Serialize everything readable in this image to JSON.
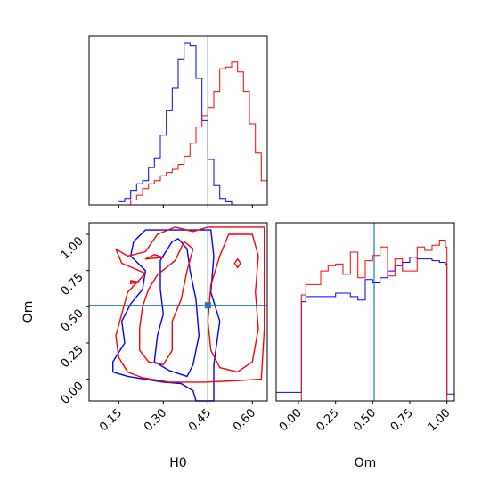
{
  "chart_data": [
    {
      "type": "histogram",
      "panel": "H0 marginal",
      "xlim": [
        0.05,
        0.65
      ],
      "truth": 0.45,
      "bin_edges": [
        0.15,
        0.17,
        0.19,
        0.21,
        0.23,
        0.25,
        0.27,
        0.29,
        0.31,
        0.33,
        0.35,
        0.37,
        0.39,
        0.41,
        0.43,
        0.45,
        0.47,
        0.49,
        0.51,
        0.53,
        0.55,
        0.57,
        0.59,
        0.61,
        0.63,
        0.65
      ],
      "series": [
        {
          "color": "#0000ff",
          "values": [
            0.02,
            0.04,
            0.09,
            0.13,
            0.15,
            0.23,
            0.29,
            0.43,
            0.58,
            0.72,
            0.9,
            1.0,
            0.98,
            0.78,
            0.52,
            0.28,
            0.12,
            0.04,
            0.02,
            0.0,
            0.0,
            0.0,
            0.0,
            0.0,
            0.0
          ]
        },
        {
          "color": "#ff0000",
          "values": [
            0.0,
            0.0,
            0.03,
            0.06,
            0.1,
            0.13,
            0.15,
            0.18,
            0.2,
            0.22,
            0.25,
            0.3,
            0.38,
            0.48,
            0.55,
            0.6,
            0.7,
            0.84,
            0.85,
            0.88,
            0.82,
            0.7,
            0.5,
            0.32,
            0.15
          ]
        }
      ]
    },
    {
      "type": "contour",
      "panel": "H0 vs Om joint",
      "xlabel": "H0",
      "ylabel": "Om",
      "xlim": [
        0.05,
        0.65
      ],
      "ylim": [
        -0.15,
        1.08
      ],
      "xticks": [
        "0.15",
        "0.30",
        "0.45",
        "0.60"
      ],
      "yticks": [
        "0.00",
        "0.25",
        "0.50",
        "0.75",
        "1.00"
      ],
      "truth": {
        "x": 0.45,
        "y": 0.51
      },
      "series": [
        {
          "color": "#0000ff",
          "level": "outer",
          "points": [
            [
              0.24,
              1.03
            ],
            [
              0.2,
              0.95
            ],
            [
              0.19,
              0.85
            ],
            [
              0.24,
              0.75
            ],
            [
              0.23,
              0.62
            ],
            [
              0.19,
              0.52
            ],
            [
              0.16,
              0.4
            ],
            [
              0.17,
              0.25
            ],
            [
              0.13,
              0.12
            ],
            [
              0.13,
              0.05
            ],
            [
              0.18,
              0.02
            ],
            [
              0.3,
              -0.02
            ],
            [
              0.36,
              -0.03
            ],
            [
              0.4,
              -0.08
            ],
            [
              0.41,
              -0.15
            ],
            [
              0.47,
              -0.15
            ],
            [
              0.47,
              0.1
            ],
            [
              0.49,
              0.4
            ],
            [
              0.46,
              0.6
            ],
            [
              0.47,
              0.85
            ],
            [
              0.46,
              1.03
            ]
          ]
        },
        {
          "color": "#0000ff",
          "level": "inner",
          "points": [
            [
              0.33,
              0.95
            ],
            [
              0.29,
              0.82
            ],
            [
              0.29,
              0.62
            ],
            [
              0.3,
              0.45
            ],
            [
              0.28,
              0.3
            ],
            [
              0.27,
              0.12
            ],
            [
              0.32,
              0.06
            ],
            [
              0.38,
              0.02
            ],
            [
              0.4,
              0.1
            ],
            [
              0.42,
              0.3
            ],
            [
              0.41,
              0.55
            ],
            [
              0.39,
              0.75
            ],
            [
              0.38,
              0.9
            ],
            [
              0.35,
              0.97
            ]
          ]
        },
        {
          "color": "#ff0000",
          "level": "outer",
          "points": [
            [
              0.34,
              1.05
            ],
            [
              0.28,
              1.0
            ],
            [
              0.24,
              0.88
            ],
            [
              0.18,
              0.85
            ],
            [
              0.14,
              0.9
            ],
            [
              0.16,
              0.8
            ],
            [
              0.24,
              0.73
            ],
            [
              0.18,
              0.6
            ],
            [
              0.16,
              0.45
            ],
            [
              0.14,
              0.3
            ],
            [
              0.15,
              0.15
            ],
            [
              0.18,
              0.05
            ],
            [
              0.23,
              0.01
            ],
            [
              0.32,
              -0.02
            ],
            [
              0.44,
              -0.02
            ],
            [
              0.55,
              -0.01
            ],
            [
              0.63,
              0.0
            ],
            [
              0.64,
              0.35
            ],
            [
              0.64,
              0.7
            ],
            [
              0.64,
              1.05
            ],
            [
              0.52,
              1.05
            ],
            [
              0.45,
              1.05
            ],
            [
              0.4,
              1.02
            ]
          ]
        },
        {
          "color": "#ff0000",
          "level": "inner",
          "points": [
            [
              0.37,
              0.95
            ],
            [
              0.34,
              0.82
            ],
            [
              0.28,
              0.72
            ],
            [
              0.25,
              0.62
            ],
            [
              0.23,
              0.5
            ],
            [
              0.22,
              0.35
            ],
            [
              0.22,
              0.2
            ],
            [
              0.25,
              0.12
            ],
            [
              0.3,
              0.1
            ],
            [
              0.33,
              0.2
            ],
            [
              0.33,
              0.4
            ],
            [
              0.36,
              0.55
            ],
            [
              0.38,
              0.75
            ],
            [
              0.4,
              0.9
            ]
          ]
        },
        {
          "color": "#ff0000",
          "level": "inner",
          "points": [
            [
              0.52,
              1.0
            ],
            [
              0.49,
              0.85
            ],
            [
              0.46,
              0.65
            ],
            [
              0.45,
              0.4
            ],
            [
              0.46,
              0.2
            ],
            [
              0.49,
              0.08
            ],
            [
              0.55,
              0.05
            ],
            [
              0.6,
              0.12
            ],
            [
              0.62,
              0.35
            ],
            [
              0.61,
              0.6
            ],
            [
              0.62,
              0.85
            ],
            [
              0.6,
              1.0
            ]
          ]
        },
        {
          "color": "#ff0000",
          "level": "island",
          "points": [
            [
              0.54,
              0.8
            ],
            [
              0.55,
              0.83
            ],
            [
              0.56,
              0.8
            ],
            [
              0.55,
              0.77
            ]
          ]
        },
        {
          "color": "#ff0000",
          "level": "island",
          "points": [
            [
              0.19,
              0.66
            ],
            [
              0.22,
              0.67
            ],
            [
              0.19,
              0.68
            ]
          ]
        },
        {
          "color": "#ff0000",
          "level": "island",
          "points": [
            [
              0.24,
              0.83
            ],
            [
              0.27,
              0.86
            ],
            [
              0.3,
              0.84
            ]
          ]
        }
      ]
    },
    {
      "type": "histogram",
      "panel": "Om marginal",
      "xlabel": "Om",
      "xlim": [
        -0.15,
        1.05
      ],
      "xticks": [
        "0.00",
        "0.25",
        "0.50",
        "0.75",
        "1.00"
      ],
      "truth": 0.51,
      "bin_edges": [
        -0.15,
        0.0,
        0.02,
        0.05,
        0.1,
        0.15,
        0.2,
        0.25,
        0.3,
        0.35,
        0.4,
        0.45,
        0.5,
        0.55,
        0.6,
        0.65,
        0.7,
        0.75,
        0.8,
        0.85,
        0.9,
        0.95,
        0.99,
        1.0,
        1.05
      ],
      "series": [
        {
          "color": "#0000ff",
          "values": [
            0.05,
            0.05,
            0.58,
            0.61,
            0.61,
            0.61,
            0.61,
            0.63,
            0.63,
            0.61,
            0.59,
            0.71,
            0.69,
            0.72,
            0.76,
            0.79,
            0.81,
            0.84,
            0.83,
            0.83,
            0.82,
            0.81,
            0.8,
            0.04
          ]
        },
        {
          "color": "#ff0000",
          "values": [
            0.0,
            0.0,
            0.62,
            0.68,
            0.68,
            0.76,
            0.79,
            0.8,
            0.74,
            0.87,
            0.72,
            0.82,
            0.85,
            0.9,
            0.73,
            0.83,
            0.76,
            0.76,
            0.9,
            0.88,
            0.91,
            0.94,
            0.9,
            0.0
          ]
        }
      ]
    }
  ]
}
